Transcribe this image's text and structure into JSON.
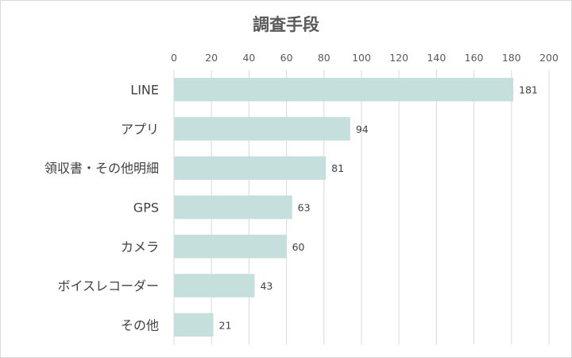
{
  "chart_data": {
    "type": "bar",
    "orientation": "horizontal",
    "title": "調査手段",
    "categories": [
      "LINE",
      "アプリ",
      "領収書・その他明細",
      "GPS",
      "カメラ",
      "ボイスレコーダー",
      "その他"
    ],
    "values": [
      181,
      94,
      81,
      63,
      60,
      43,
      21
    ],
    "xlim": [
      0,
      200
    ],
    "ticks": [
      0,
      20,
      40,
      60,
      80,
      100,
      120,
      140,
      160,
      180,
      200
    ],
    "xaxis_position": "top",
    "grid": true,
    "data_labels": true,
    "legend": "none",
    "colors": {
      "bar": "#c5e0dc",
      "grid": "#d9d9d9",
      "text": "#595959"
    }
  }
}
